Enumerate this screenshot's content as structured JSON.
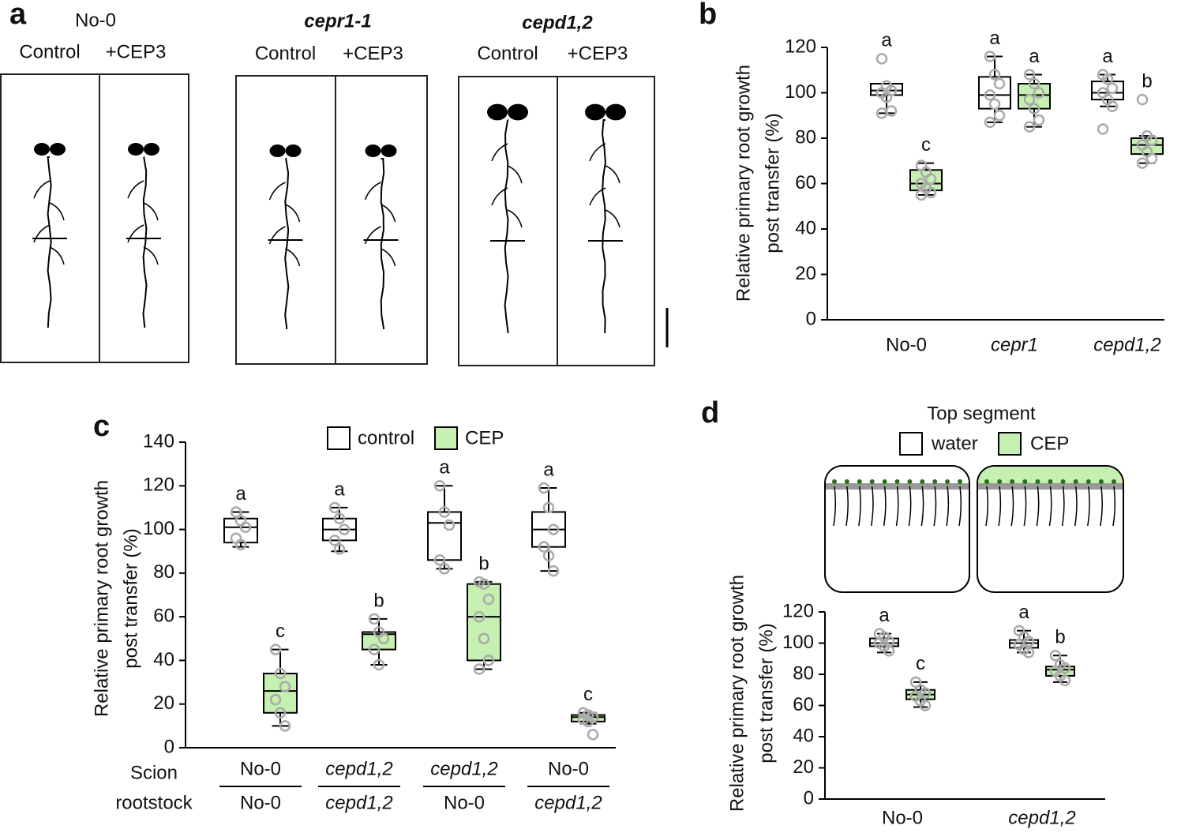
{
  "panel_labels": [
    "a",
    "b",
    "c",
    "d"
  ],
  "panel_a": {
    "groups": [
      {
        "genotype": "No-0",
        "conditions": [
          "Control",
          "+CEP3"
        ]
      },
      {
        "genotype": "cepr1-1",
        "conditions": [
          "Control",
          "+CEP3"
        ]
      },
      {
        "genotype": "cepd1,2",
        "conditions": [
          "Control",
          "+CEP3"
        ]
      }
    ]
  },
  "chart_data": [
    {
      "type": "box",
      "ylabel": [
        "Relative primary root growth",
        "post transfer (%)"
      ],
      "ylim": [
        0,
        120
      ],
      "yticks": [
        0,
        20,
        40,
        60,
        80,
        100,
        120
      ],
      "categories": [
        "No-0",
        "cepr1",
        "cepd1,2"
      ],
      "series": [
        {
          "color": "#ffffff",
          "min": [
            91,
            87,
            94
          ],
          "q1": [
            99,
            93,
            97
          ],
          "median": [
            101,
            99,
            100
          ],
          "q3": [
            104,
            107,
            105
          ],
          "max": [
            104,
            116,
            108
          ],
          "points": [
            [
              115,
              103,
              101,
              100,
              98,
              92,
              91
            ],
            [
              116,
              108,
              104,
              99,
              95,
              90,
              87
            ],
            [
              108,
              106,
              102,
              100,
              97,
              94,
              84
            ]
          ],
          "letters": [
            "a",
            "a",
            "a"
          ]
        },
        {
          "color": "#c6efb2",
          "min": [
            55,
            85,
            69
          ],
          "q1": [
            57,
            93,
            73
          ],
          "median": [
            60,
            99,
            77
          ],
          "q3": [
            66,
            104,
            80
          ],
          "max": [
            69,
            108,
            81
          ],
          "points": [
            [
              68,
              65,
              62,
              60,
              58,
              56,
              55
            ],
            [
              108,
              104,
              100,
              97,
              93,
              88,
              85
            ],
            [
              97,
              81,
              79,
              77,
              74,
              71,
              69
            ]
          ],
          "letters": [
            "c",
            "a",
            "b"
          ]
        }
      ]
    },
    {
      "type": "box",
      "ylabel": [
        "Relative primary root growth",
        "post transfer (%)"
      ],
      "ylim": [
        0,
        140
      ],
      "yticks": [
        0,
        20,
        40,
        60,
        80,
        100,
        120,
        140
      ],
      "category_rows": [
        "Scion",
        "rootstock"
      ],
      "categories": [
        [
          "No-0",
          "No-0"
        ],
        [
          "cepd1,2",
          "cepd1,2"
        ],
        [
          "cepd1,2",
          "No-0"
        ],
        [
          "No-0",
          "cepd1,2"
        ]
      ],
      "series": [
        {
          "name": "control",
          "color": "#ffffff",
          "min": [
            92,
            90,
            82,
            81
          ],
          "q1": [
            94,
            95,
            86,
            92
          ],
          "median": [
            101,
            100,
            103,
            100
          ],
          "q3": [
            105,
            105,
            108,
            108
          ],
          "max": [
            108,
            110,
            120,
            119
          ],
          "points": [
            [
              108,
              104,
              101,
              96,
              93
            ],
            [
              110,
              105,
              100,
              95,
              91
            ],
            [
              120,
              108,
              102,
              86,
              82
            ],
            [
              119,
              110,
              100,
              92,
              88,
              81
            ]
          ],
          "letters": [
            "a",
            "a",
            "a",
            "a"
          ]
        },
        {
          "name": "CEP",
          "color": "#c6efb2",
          "min": [
            10,
            38,
            36,
            11
          ],
          "q1": [
            16,
            45,
            40,
            12
          ],
          "median": [
            26,
            52,
            60,
            14
          ],
          "q3": [
            34,
            53,
            75,
            15
          ],
          "max": [
            45,
            59,
            76,
            16
          ],
          "points": [
            [
              45,
              34,
              28,
              22,
              16,
              10
            ],
            [
              59,
              53,
              50,
              45,
              38
            ],
            [
              76,
              75,
              68,
              60,
              50,
              40,
              36
            ],
            [
              16,
              15,
              14,
              13,
              12,
              6
            ]
          ],
          "letters": [
            "c",
            "b",
            "b",
            "c"
          ]
        }
      ]
    },
    {
      "type": "box",
      "legend_title": "Top segment",
      "ylabel": [
        "Relative primary root growth",
        "post transfer (%)"
      ],
      "ylim": [
        0,
        120
      ],
      "yticks": [
        0,
        20,
        40,
        60,
        80,
        100,
        120
      ],
      "categories": [
        "No-0",
        "cepd1,2"
      ],
      "series": [
        {
          "name": "water",
          "color": "#ffffff",
          "min": [
            94,
            94
          ],
          "q1": [
            98,
            97
          ],
          "median": [
            100,
            100
          ],
          "q3": [
            103,
            102
          ],
          "max": [
            106,
            108
          ],
          "points": [
            [
              106,
              104,
              101,
              100,
              98,
              95
            ],
            [
              108,
              104,
              101,
              99,
              96,
              94
            ]
          ],
          "letters": [
            "a",
            "a"
          ]
        },
        {
          "name": "CEP",
          "color": "#c6efb2",
          "min": [
            59,
            75
          ],
          "q1": [
            64,
            79
          ],
          "median": [
            67,
            83
          ],
          "q3": [
            70,
            85
          ],
          "max": [
            75,
            92
          ],
          "points": [
            [
              75,
              70,
              68,
              66,
              63,
              60
            ],
            [
              92,
              86,
              84,
              82,
              79,
              76
            ]
          ],
          "letters": [
            "c",
            "b"
          ]
        }
      ]
    }
  ]
}
